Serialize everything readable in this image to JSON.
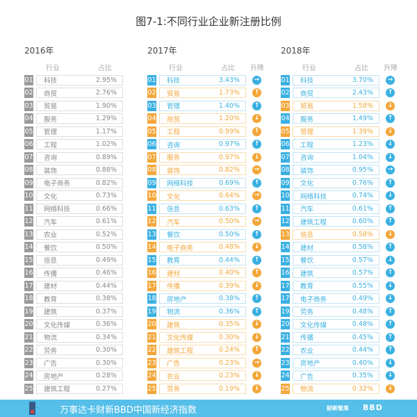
{
  "title": "图7-1:不同行业企业新注册比例",
  "headers": {
    "industry": "行业",
    "share": "占比",
    "change": "升降"
  },
  "colors": {
    "blue": "#3ab0e2",
    "orange": "#f3a73b",
    "gray": "#9a9a9a"
  },
  "years": [
    {
      "year": "2016年",
      "rows": [
        [
          "01",
          "科技",
          "2.95%"
        ],
        [
          "02",
          "商贸",
          "2.76%"
        ],
        [
          "03",
          "贸易",
          "1.90%"
        ],
        [
          "04",
          "服务",
          "1.29%"
        ],
        [
          "05",
          "管理",
          "1.17%"
        ],
        [
          "06",
          "工程",
          "1.02%"
        ],
        [
          "07",
          "咨询",
          "0.89%"
        ],
        [
          "08",
          "装饰",
          "0.88%"
        ],
        [
          "09",
          "电子商务",
          "0.82%"
        ],
        [
          "10",
          "文化",
          "0.73%"
        ],
        [
          "11",
          "网络科技",
          "0.66%"
        ],
        [
          "12",
          "汽车",
          "0.61%"
        ],
        [
          "13",
          "农业",
          "0.52%"
        ],
        [
          "14",
          "餐饮",
          "0.50%"
        ],
        [
          "15",
          "信息",
          "0.49%"
        ],
        [
          "16",
          "传播",
          "0.46%"
        ],
        [
          "17",
          "建材",
          "0.44%"
        ],
        [
          "18",
          "教育",
          "0.38%"
        ],
        [
          "19",
          "建筑",
          "0.37%"
        ],
        [
          "20",
          "文化传媒",
          "0.36%"
        ],
        [
          "21",
          "物流",
          "0.34%"
        ],
        [
          "22",
          "劳务",
          "0.30%"
        ],
        [
          "23",
          "广告",
          "0.30%"
        ],
        [
          "24",
          "房地产",
          "0.28%"
        ],
        [
          "25",
          "建筑工程",
          "0.27%"
        ]
      ]
    },
    {
      "year": "2017年",
      "rows": [
        [
          "01",
          "科技",
          "3.43%",
          "b",
          "right"
        ],
        [
          "02",
          "贸易",
          "1.73%",
          "o",
          "up"
        ],
        [
          "03",
          "管理",
          "1.40%",
          "b",
          "up"
        ],
        [
          "04",
          "商贸",
          "1.20%",
          "o",
          "down"
        ],
        [
          "05",
          "工程",
          "0.99%",
          "o",
          "up"
        ],
        [
          "06",
          "咨询",
          "0.97%",
          "b",
          "up"
        ],
        [
          "07",
          "服务",
          "0.97%",
          "o",
          "down"
        ],
        [
          "08",
          "装饰",
          "0.82%",
          "o",
          "right"
        ],
        [
          "09",
          "网络科技",
          "0.69%",
          "b",
          "up"
        ],
        [
          "10",
          "文化",
          "0.64%",
          "o",
          "right"
        ],
        [
          "11",
          "信息",
          "0.63%",
          "b",
          "up"
        ],
        [
          "12",
          "汽车",
          "0.50%",
          "o",
          "right"
        ],
        [
          "13",
          "餐饮",
          "0.50%",
          "b",
          "up"
        ],
        [
          "14",
          "电子商务",
          "0.48%",
          "o",
          "down"
        ],
        [
          "15",
          "教育",
          "0.44%",
          "b",
          "up"
        ],
        [
          "16",
          "建材",
          "0.40%",
          "o",
          "up"
        ],
        [
          "17",
          "传播",
          "0.39%",
          "o",
          "down"
        ],
        [
          "18",
          "房地产",
          "0.38%",
          "b",
          "up"
        ],
        [
          "19",
          "物流",
          "0.36%",
          "b",
          "up"
        ],
        [
          "20",
          "建筑",
          "0.35%",
          "o",
          "down"
        ],
        [
          "21",
          "文化传媒",
          "0.30%",
          "o",
          "down"
        ],
        [
          "22",
          "建筑工程",
          "0.24%",
          "o",
          "up"
        ],
        [
          "23",
          "广告",
          "0.23%",
          "o",
          "right"
        ],
        [
          "24",
          "农业",
          "0.23%",
          "o",
          "down"
        ],
        [
          "25",
          "劳务",
          "0.19%",
          "o",
          "down"
        ]
      ]
    },
    {
      "year": "2018年",
      "rows": [
        [
          "01",
          "科技",
          "3.70%",
          "b",
          "right"
        ],
        [
          "02",
          "商贸",
          "2.43%",
          "b",
          "up"
        ],
        [
          "03",
          "贸易",
          "1.58%",
          "o",
          "down"
        ],
        [
          "04",
          "服务",
          "1.49%",
          "b",
          "up"
        ],
        [
          "05",
          "管理",
          "1.39%",
          "o",
          "down"
        ],
        [
          "06",
          "工程",
          "1.23%",
          "b",
          "down"
        ],
        [
          "07",
          "咨询",
          "1.04%",
          "b",
          "down"
        ],
        [
          "08",
          "装饰",
          "0.95%",
          "b",
          "right"
        ],
        [
          "09",
          "文化",
          "0.76%",
          "b",
          "up"
        ],
        [
          "10",
          "网络科技",
          "0.74%",
          "b",
          "down"
        ],
        [
          "11",
          "汽车",
          "0.61%",
          "b",
          "up"
        ],
        [
          "12",
          "建筑工程",
          "0.60%",
          "b",
          "up"
        ],
        [
          "13",
          "信息",
          "0.58%",
          "o",
          "down"
        ],
        [
          "14",
          "建材",
          "0.58%",
          "b",
          "up"
        ],
        [
          "15",
          "餐饮",
          "0.57%",
          "b",
          "down"
        ],
        [
          "16",
          "建筑",
          "0.57%",
          "b",
          "up"
        ],
        [
          "17",
          "教育",
          "0.55%",
          "b",
          "down"
        ],
        [
          "17",
          "电子商务",
          "0.49%",
          "b",
          "down"
        ],
        [
          "19",
          "劳务",
          "0.48%",
          "b",
          "up"
        ],
        [
          "20",
          "文化传媒",
          "0.48%",
          "b",
          "up"
        ],
        [
          "21",
          "传播",
          "0.45%",
          "b",
          "up"
        ],
        [
          "22",
          "农业",
          "0.44%",
          "b",
          "up"
        ],
        [
          "23",
          "房地产",
          "0.40%",
          "b",
          "down"
        ],
        [
          "24",
          "广告",
          "0.35%",
          "b",
          "down"
        ],
        [
          "25",
          "物流",
          "0.32%",
          "o",
          "down"
        ]
      ]
    }
  ],
  "footer": {
    "text": "万事达卡财新BBD中国新经济指数",
    "logo1": "财新智库",
    "logo2": "BBD"
  }
}
